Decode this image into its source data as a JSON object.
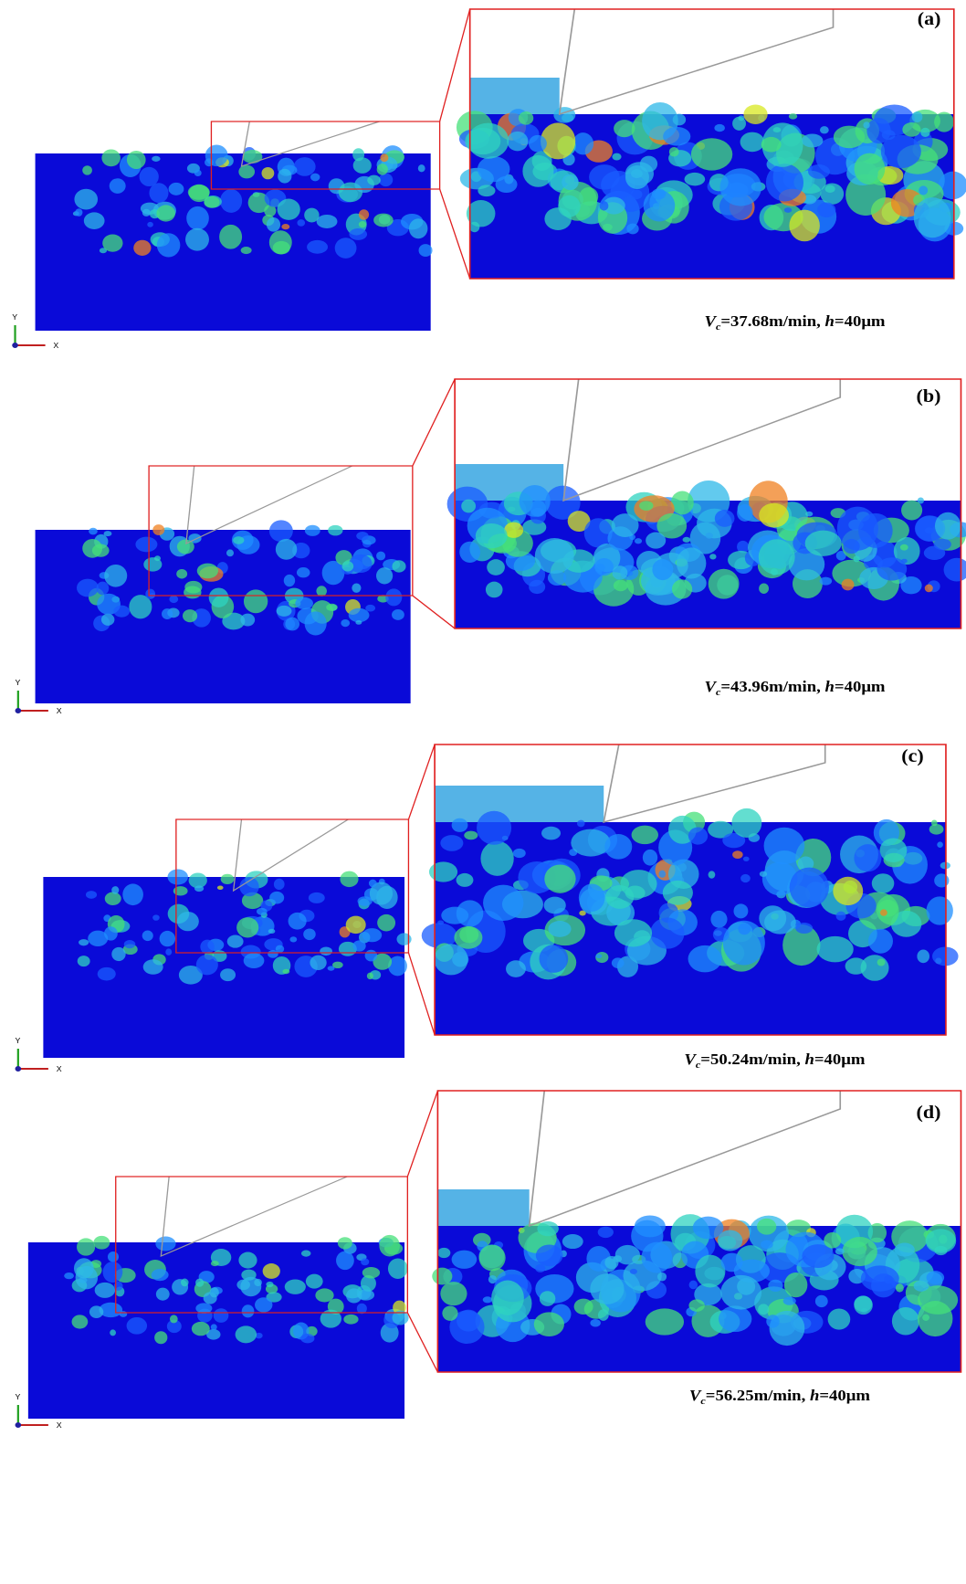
{
  "panels": [
    {
      "label": "(a)",
      "caption": {
        "symbol": "V",
        "subscript": "c",
        "speed": "=37.68m/min, ",
        "depth_symbol": "h",
        "depth": "=40μm"
      },
      "axes": {
        "y": "Y",
        "x": "X"
      }
    },
    {
      "label": "(b)",
      "caption": {
        "symbol": "V",
        "subscript": "c",
        "speed": "=43.96m/min, ",
        "depth_symbol": "h",
        "depth": "=40μm"
      },
      "axes": {
        "y": "Y",
        "x": "X"
      }
    },
    {
      "label": "(c)",
      "caption": {
        "symbol": "V",
        "subscript": "c",
        "speed": "=50.24m/min, ",
        "depth_symbol": "h",
        "depth": "=40μm"
      },
      "axes": {
        "y": "Y",
        "x": "X"
      }
    },
    {
      "label": "(d)",
      "caption": {
        "symbol": "V",
        "subscript": "c",
        "speed": "=56.25m/min, ",
        "depth_symbol": "h",
        "depth": "=40μm"
      },
      "axes": {
        "y": "Y",
        "x": "X"
      }
    }
  ]
}
